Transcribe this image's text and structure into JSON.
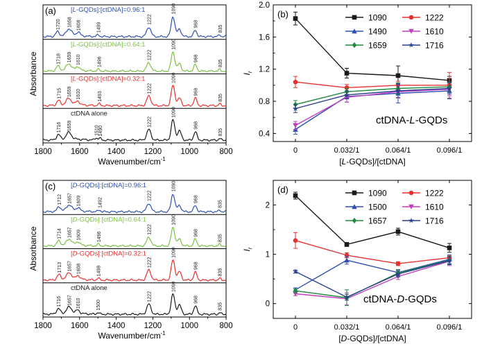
{
  "colors": {
    "black": "#1a1a1a",
    "red": "#e8312f",
    "blue": "#2f4fb5",
    "green": "#7cc243",
    "magenta": "#c13fbf",
    "darkgreen": "#1e8a3c",
    "navy": "#283f8f"
  },
  "chart_data": [
    {
      "panel": "(a)",
      "type": "line",
      "xlabel": "Wavenumber/cm",
      "xlabel_sup": "-1",
      "ylabel": "Absorbance",
      "xlim": [
        1800,
        800
      ],
      "xticks": [
        "1800",
        "1600",
        "1400",
        "1200",
        "1000",
        "800"
      ],
      "series": [
        {
          "name": "[L-GQDs]:[ctDNA]=0.96:1",
          "name_parts": [
            "[",
            "L",
            "-GQDs]:[ctDNA]=0.96:1"
          ],
          "color": "#2f4fb5",
          "peaks": [
            {
              "x": 1720,
              "h": 0.22,
              "w": 14,
              "label": "1720"
            },
            {
              "x": 1658,
              "h": 0.32,
              "w": 20,
              "label": "1658"
            },
            {
              "x": 1608,
              "h": 0.18,
              "w": 14,
              "label": "1608"
            },
            {
              "x": 1499,
              "h": 0.08,
              "w": 10,
              "label": "1499"
            },
            {
              "x": 1222,
              "h": 0.45,
              "w": 16,
              "label": "1222"
            },
            {
              "x": 1090,
              "h": 0.95,
              "w": 14,
              "label": "1090"
            },
            {
              "x": 1055,
              "h": 0.35,
              "w": 14,
              "label": ""
            },
            {
              "x": 968,
              "h": 0.3,
              "w": 12,
              "label": "968"
            },
            {
              "x": 835,
              "h": 0.08,
              "w": 8,
              "label": "835"
            }
          ]
        },
        {
          "name": "[L-GQDs]:[ctDNA]=0.64:1",
          "name_parts": [
            "[",
            "L",
            "-GQDs]:[ctDNA]=0.64:1"
          ],
          "color": "#7cc243",
          "peaks": [
            {
              "x": 1718,
              "h": 0.22,
              "w": 14,
              "label": "1718"
            },
            {
              "x": 1659,
              "h": 0.3,
              "w": 20,
              "label": "1659"
            },
            {
              "x": 1610,
              "h": 0.18,
              "w": 14,
              "label": "1610"
            },
            {
              "x": 1496,
              "h": 0.08,
              "w": 10,
              "label": "1496"
            },
            {
              "x": 1222,
              "h": 0.4,
              "w": 16,
              "label": "1222"
            },
            {
              "x": 1090,
              "h": 0.9,
              "w": 14,
              "label": "1090"
            },
            {
              "x": 1055,
              "h": 0.35,
              "w": 14,
              "label": ""
            },
            {
              "x": 968,
              "h": 0.3,
              "w": 12,
              "label": "968"
            },
            {
              "x": 835,
              "h": 0.08,
              "w": 8,
              "label": "835"
            }
          ]
        },
        {
          "name": "[L-GQDs]:[ctDNA]=0.32:1",
          "name_parts": [
            "[",
            "L",
            "-GQDs]:[ctDNA]=0.32:1"
          ],
          "color": "#e8312f",
          "peaks": [
            {
              "x": 1715,
              "h": 0.22,
              "w": 14,
              "label": "1715"
            },
            {
              "x": 1659,
              "h": 0.3,
              "w": 20,
              "label": "1659"
            },
            {
              "x": 1610,
              "h": 0.18,
              "w": 14,
              "label": "1610"
            },
            {
              "x": 1493,
              "h": 0.08,
              "w": 10,
              "label": "1493"
            },
            {
              "x": 1222,
              "h": 0.45,
              "w": 16,
              "label": "1222"
            },
            {
              "x": 1090,
              "h": 0.95,
              "w": 14,
              "label": "1090"
            },
            {
              "x": 1055,
              "h": 0.35,
              "w": 14,
              "label": ""
            },
            {
              "x": 968,
              "h": 0.35,
              "w": 12,
              "label": "968"
            },
            {
              "x": 835,
              "h": 0.08,
              "w": 8,
              "label": "835"
            }
          ]
        },
        {
          "name": "ctDNA alone",
          "name_parts": [
            "ctDNA alone"
          ],
          "color": "#1a1a1a",
          "peaks": [
            {
              "x": 1716,
              "h": 0.25,
              "w": 14,
              "label": "1716"
            },
            {
              "x": 1659,
              "h": 0.32,
              "w": 20,
              "label": "1659"
            },
            {
              "x": 1510,
              "h": 0.1,
              "w": 10,
              "label": "1510"
            },
            {
              "x": 1490,
              "h": 0.08,
              "w": 10,
              "label": "1490"
            },
            {
              "x": 1222,
              "h": 0.5,
              "w": 16,
              "label": "1222"
            },
            {
              "x": 1090,
              "h": 0.95,
              "w": 14,
              "label": "1090"
            },
            {
              "x": 1055,
              "h": 0.45,
              "w": 14,
              "label": ""
            },
            {
              "x": 968,
              "h": 0.4,
              "w": 12,
              "label": "968"
            },
            {
              "x": 835,
              "h": 0.08,
              "w": 8,
              "label": "835"
            }
          ]
        }
      ]
    },
    {
      "panel": "(b)",
      "type": "line",
      "categories": [
        "0",
        "0.032/1",
        "0.064/1",
        "0.096/1"
      ],
      "xlabel_parts": [
        "[",
        "L",
        "-GQDs]/[ctDNA]"
      ],
      "ylabel": "I",
      "ylabel_sub": "r",
      "ylim": [
        0.3,
        2.0
      ],
      "yticks": [
        "0.4",
        "0.8",
        "1.2",
        "1.6",
        "2.0"
      ],
      "annotation_parts": [
        "ctDNA-",
        "L",
        "-GQDs"
      ],
      "legend": "top-right",
      "series": [
        {
          "name": "1090",
          "color": "#1a1a1a",
          "marker": "square",
          "values": [
            1.83,
            1.15,
            1.12,
            1.06
          ],
          "err": [
            0.08,
            0.06,
            0.12,
            0.05
          ]
        },
        {
          "name": "1222",
          "color": "#e8312f",
          "marker": "circle",
          "values": [
            1.04,
            0.97,
            1.0,
            1.0
          ],
          "err": [
            0.07,
            0.04,
            0.05,
            0.16
          ]
        },
        {
          "name": "1490",
          "color": "#2f4fb5",
          "marker": "triangle-up",
          "values": [
            0.45,
            0.86,
            0.9,
            0.93
          ],
          "err": [
            0.06,
            0.07,
            0.12,
            0.1
          ]
        },
        {
          "name": "1610",
          "color": "#c13fbf",
          "marker": "triangle-down",
          "values": [
            0.5,
            0.85,
            0.92,
            0.95
          ],
          "err": [
            0.05,
            0.06,
            0.08,
            0.08
          ]
        },
        {
          "name": "1659",
          "color": "#1e8a3c",
          "marker": "diamond",
          "values": [
            0.76,
            0.92,
            0.96,
            0.98
          ],
          "err": [
            0.05,
            0.04,
            0.07,
            0.06
          ]
        },
        {
          "name": "1716",
          "color": "#283f8f",
          "marker": "star",
          "values": [
            0.71,
            0.88,
            0.93,
            0.96
          ],
          "err": [
            0.05,
            0.05,
            0.08,
            0.07
          ]
        }
      ]
    },
    {
      "panel": "(c)",
      "type": "line",
      "xlabel": "Wavenumber/cm",
      "xlabel_sup": "-1",
      "ylabel": "Absorbance",
      "xlim": [
        1800,
        800
      ],
      "xticks": [
        "1800",
        "1600",
        "1400",
        "1200",
        "1000",
        "800"
      ],
      "series": [
        {
          "name": "[D-GQDs]:[ctDNA]=0.96:1",
          "name_parts": [
            "[",
            "D",
            "-GQDs]:[ctDNA]=0.96:1"
          ],
          "color": "#2f4fb5",
          "peaks": [
            {
              "x": 1712,
              "h": 0.22,
              "w": 14,
              "label": "1712"
            },
            {
              "x": 1657,
              "h": 0.28,
              "w": 20,
              "label": "1657"
            },
            {
              "x": 1609,
              "h": 0.16,
              "w": 14,
              "label": "1609"
            },
            {
              "x": 1492,
              "h": 0.08,
              "w": 10,
              "label": "1492"
            },
            {
              "x": 1222,
              "h": 0.4,
              "w": 16,
              "label": "1222"
            },
            {
              "x": 1090,
              "h": 0.85,
              "w": 14,
              "label": "1090"
            },
            {
              "x": 1055,
              "h": 0.3,
              "w": 14,
              "label": ""
            },
            {
              "x": 968,
              "h": 0.3,
              "w": 12,
              "label": "968"
            },
            {
              "x": 835,
              "h": 0.08,
              "w": 8,
              "label": "835"
            }
          ]
        },
        {
          "name": "[D-GQDs]:[ctDNA]=0.64:1",
          "name_parts": [
            "[",
            "D",
            "-GQDs]:[ctDNA]=0.64:1"
          ],
          "color": "#7cc243",
          "peaks": [
            {
              "x": 1714,
              "h": 0.22,
              "w": 14,
              "label": "1714"
            },
            {
              "x": 1657,
              "h": 0.28,
              "w": 20,
              "label": "1657"
            },
            {
              "x": 1609,
              "h": 0.16,
              "w": 14,
              "label": "1609"
            },
            {
              "x": 1496,
              "h": 0.08,
              "w": 10,
              "label": "1496"
            },
            {
              "x": 1222,
              "h": 0.42,
              "w": 16,
              "label": "1222"
            },
            {
              "x": 1090,
              "h": 0.88,
              "w": 14,
              "label": "1090"
            },
            {
              "x": 1055,
              "h": 0.32,
              "w": 14,
              "label": ""
            },
            {
              "x": 968,
              "h": 0.32,
              "w": 12,
              "label": "968"
            },
            {
              "x": 835,
              "h": 0.08,
              "w": 8,
              "label": "835"
            }
          ]
        },
        {
          "name": "[D-GQDs]:[ctDNA]=0.32:1",
          "name_parts": [
            "[",
            "D",
            "-GQDs]:[ctDNA]=0.32:1"
          ],
          "color": "#e8312f",
          "peaks": [
            {
              "x": 1713,
              "h": 0.24,
              "w": 14,
              "label": "1713"
            },
            {
              "x": 1657,
              "h": 0.3,
              "w": 20,
              "label": "1657"
            },
            {
              "x": 1608,
              "h": 0.18,
              "w": 14,
              "label": "1608"
            },
            {
              "x": 1498,
              "h": 0.08,
              "w": 10,
              "label": "1498"
            },
            {
              "x": 1222,
              "h": 0.48,
              "w": 16,
              "label": "1222"
            },
            {
              "x": 1090,
              "h": 0.95,
              "w": 14,
              "label": "1090"
            },
            {
              "x": 1055,
              "h": 0.4,
              "w": 14,
              "label": ""
            },
            {
              "x": 968,
              "h": 0.38,
              "w": 12,
              "label": "968"
            },
            {
              "x": 835,
              "h": 0.08,
              "w": 8,
              "label": "835"
            }
          ]
        },
        {
          "name": "ctDNA alone",
          "name_parts": [
            "ctDNA alone"
          ],
          "color": "#1a1a1a",
          "peaks": [
            {
              "x": 1716,
              "h": 0.25,
              "w": 14,
              "label": "1716"
            },
            {
              "x": 1657,
              "h": 0.3,
              "w": 20,
              "label": "1657"
            },
            {
              "x": 1610,
              "h": 0.16,
              "w": 14,
              "label": "1610"
            },
            {
              "x": 1500,
              "h": 0.08,
              "w": 10,
              "label": "1500"
            },
            {
              "x": 1222,
              "h": 0.48,
              "w": 16,
              "label": "1222"
            },
            {
              "x": 1090,
              "h": 0.95,
              "w": 14,
              "label": "1090"
            },
            {
              "x": 1055,
              "h": 0.45,
              "w": 14,
              "label": ""
            },
            {
              "x": 968,
              "h": 0.4,
              "w": 12,
              "label": "968"
            },
            {
              "x": 835,
              "h": 0.08,
              "w": 8,
              "label": "835"
            }
          ]
        }
      ]
    },
    {
      "panel": "(d)",
      "type": "line",
      "categories": [
        "0",
        "0.032/1",
        "0.064/1",
        "0.096/1"
      ],
      "xlabel_parts": [
        "[",
        "D",
        "-GQDs]/[ctDNA]"
      ],
      "ylabel": "I",
      "ylabel_sub": "r",
      "ylim": [
        -0.3,
        2.5
      ],
      "yticks": [
        "0",
        "1",
        "2"
      ],
      "annotation_parts": [
        "ctDNA-",
        "D",
        "-GQDs"
      ],
      "legend": "top-right",
      "series": [
        {
          "name": "1090",
          "color": "#1a1a1a",
          "marker": "square",
          "values": [
            2.19,
            1.2,
            1.46,
            1.13
          ],
          "err": [
            0.07,
            0.04,
            0.07,
            0.09
          ]
        },
        {
          "name": "1222",
          "color": "#e8312f",
          "marker": "circle",
          "values": [
            1.28,
            0.98,
            0.81,
            0.93
          ],
          "err": [
            0.16,
            0.05,
            0.04,
            0.04
          ]
        },
        {
          "name": "1500",
          "color": "#2f4fb5",
          "marker": "triangle-up",
          "values": [
            0.28,
            0.88,
            0.63,
            0.9
          ],
          "err": [
            0.04,
            0.08,
            0.06,
            0.09
          ]
        },
        {
          "name": "1610",
          "color": "#c13fbf",
          "marker": "triangle-down",
          "values": [
            0.2,
            0.1,
            0.55,
            0.86
          ],
          "err": [
            0.04,
            0.12,
            0.06,
            0.09
          ]
        },
        {
          "name": "1657",
          "color": "#1e8a3c",
          "marker": "diamond",
          "values": [
            0.26,
            0.12,
            0.62,
            0.88
          ],
          "err": [
            0.04,
            0.16,
            0.06,
            0.08
          ]
        },
        {
          "name": "1716",
          "color": "#283f8f",
          "marker": "star",
          "values": [
            0.65,
            0.13,
            0.6,
            0.87
          ],
          "err": [
            0.03,
            0.06,
            0.06,
            0.08
          ]
        }
      ]
    }
  ]
}
